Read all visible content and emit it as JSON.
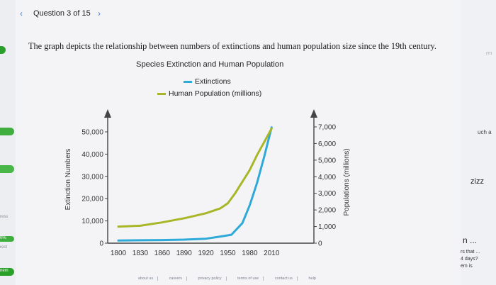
{
  "nav": {
    "prev": "‹",
    "next": "›",
    "question_counter": "Question 3 of 15"
  },
  "question_text": "The graph depicts the relationship between numbers of extinctions and human population size since the 19th century.",
  "left_sidebar": {
    "labels": [
      "ress",
      "0%",
      "rect",
      "nem"
    ]
  },
  "right_sidebar": {
    "top": "rm",
    "text1": "uch a",
    "text2": "zizz",
    "text3": "n ...",
    "text4": "rs that ...",
    "text5": "4 days?",
    "text6": "em is"
  },
  "footer": {
    "links": [
      "about us",
      "careers",
      "privacy policy",
      "terms of use",
      "contact us",
      "help"
    ]
  },
  "chart_data": {
    "type": "line",
    "title": "Species Extinction and Human Population",
    "x": [
      1800,
      1830,
      1860,
      1890,
      1920,
      1950,
      1980,
      2010
    ],
    "xlim": [
      1795,
      2020
    ],
    "ylabel_left": "Extinction Numbers",
    "ylabel_right": "Populations (millions)",
    "ylim_left": [
      0,
      55000
    ],
    "ylim_right": [
      0,
      7700
    ],
    "yticks_left": [
      0,
      10000,
      20000,
      30000,
      40000,
      50000
    ],
    "ytick_labels_left": [
      "0",
      "10,000",
      "20,000",
      "30,000",
      "40,000",
      "50,000"
    ],
    "yticks_right": [
      0,
      1000,
      2000,
      3000,
      4000,
      5000,
      6000,
      7000
    ],
    "ytick_labels_right": [
      "0",
      "1,000",
      "2,000",
      "3,000",
      "4,000",
      "5,000",
      "6,000",
      "7,000"
    ],
    "xtick_labels": [
      "1800",
      "1830",
      "1860",
      "1890",
      "1920",
      "1950",
      "1980",
      "2010"
    ],
    "series": [
      {
        "name": "Extinctions",
        "color": "#2eaad8",
        "axis": "left",
        "points": [
          [
            1800,
            1200
          ],
          [
            1830,
            1300
          ],
          [
            1860,
            1400
          ],
          [
            1890,
            1600
          ],
          [
            1920,
            2000
          ],
          [
            1940,
            3000
          ],
          [
            1955,
            3800
          ],
          [
            1970,
            9000
          ],
          [
            1980,
            17000
          ],
          [
            1990,
            27000
          ],
          [
            2000,
            39000
          ],
          [
            2010,
            52000
          ]
        ]
      },
      {
        "name": "Human Population (millions)",
        "color": "#a8b628",
        "axis": "right",
        "points": [
          [
            1800,
            1000
          ],
          [
            1830,
            1050
          ],
          [
            1860,
            1250
          ],
          [
            1890,
            1500
          ],
          [
            1920,
            1800
          ],
          [
            1940,
            2100
          ],
          [
            1950,
            2400
          ],
          [
            1960,
            3000
          ],
          [
            1970,
            3700
          ],
          [
            1980,
            4400
          ],
          [
            1990,
            5300
          ],
          [
            2000,
            6100
          ],
          [
            2010,
            6900
          ]
        ]
      }
    ]
  }
}
